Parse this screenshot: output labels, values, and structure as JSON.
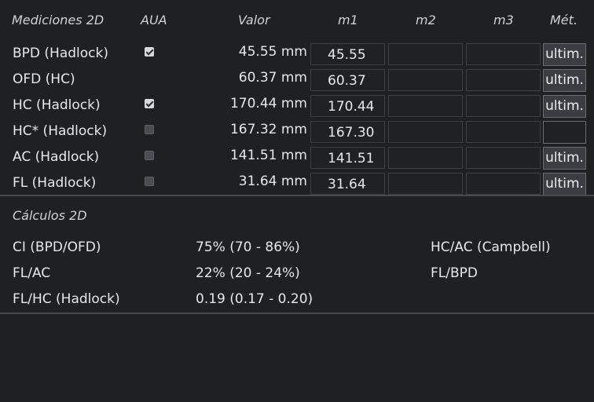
{
  "headers": {
    "section": "Mediciones 2D",
    "aua": "AUA",
    "valor": "Valor",
    "m1": "m1",
    "m2": "m2",
    "m3": "m3",
    "metodo": "Mét."
  },
  "measurements": [
    {
      "name": "BPD (Hadlock)",
      "aua": "checked",
      "valor": "45.55 mm",
      "m1": "45.55",
      "m2": "",
      "m3": "",
      "metodo": "ultim."
    },
    {
      "name": "OFD (HC)",
      "aua": "none",
      "valor": "60.37 mm",
      "m1": "60.37",
      "m2": "",
      "m3": "",
      "metodo": "ultim."
    },
    {
      "name": "HC (Hadlock)",
      "aua": "checked",
      "valor": "170.44 mm",
      "m1": "170.44",
      "m2": "",
      "m3": "",
      "metodo": "ultim."
    },
    {
      "name": "HC* (Hadlock)",
      "aua": "unchecked",
      "valor": "167.32 mm",
      "m1": "167.30",
      "m2": "",
      "m3": "",
      "metodo": ""
    },
    {
      "name": "AC (Hadlock)",
      "aua": "unchecked",
      "valor": "141.51 mm",
      "m1": "141.51",
      "m2": "",
      "m3": "",
      "metodo": "ultim."
    },
    {
      "name": "FL (Hadlock)",
      "aua": "unchecked",
      "valor": "31.64 mm",
      "m1": "31.64",
      "m2": "",
      "m3": "",
      "metodo": "ultim."
    }
  ],
  "calculations": {
    "title": "Cálculos 2D",
    "rows": [
      {
        "name": "CI (BPD/OFD)",
        "value": "75% (70 - 86%)",
        "right": "HC/AC (Campbell)"
      },
      {
        "name": "FL/AC",
        "value": "22% (20 - 24%)",
        "right": "FL/BPD"
      },
      {
        "name": "FL/HC (Hadlock)",
        "value": "0.19 (0.17 - 0.20)",
        "right": ""
      }
    ]
  }
}
